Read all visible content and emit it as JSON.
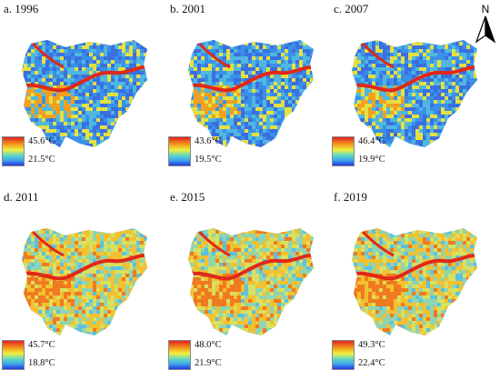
{
  "north_arrow": {
    "label": "N"
  },
  "panels": [
    {
      "title": "a. 1996",
      "max": "45.6°C",
      "min": "21.5°C"
    },
    {
      "title": "b. 2001",
      "max": "43.6°C",
      "min": "19.5°C"
    },
    {
      "title": "c. 2007",
      "max": "46.4°C",
      "min": "19.9°C"
    },
    {
      "title": "d. 2011",
      "max": "45.7°C",
      "min": "18.8°C"
    },
    {
      "title": "e. 2015",
      "max": "48.0°C",
      "min": "21.9°C"
    },
    {
      "title": "f. 2019",
      "max": "49.3°C",
      "min": "22.4°C"
    }
  ],
  "colors": {
    "legend_ramp": [
      "#e02020",
      "#f39a1a",
      "#f0f040",
      "#5ad6c5",
      "#3fa3ee",
      "#2237e0"
    ],
    "map_base": [
      "#3a6fe0",
      "#3a8fe8",
      "#4fb8e0",
      "#e6e040",
      "#f1a020"
    ],
    "map_base_late": [
      "#5cc0e0",
      "#8fd4b0",
      "#d8e060",
      "#f3c030",
      "#f07a20"
    ],
    "hot_band": "#e02818"
  }
}
